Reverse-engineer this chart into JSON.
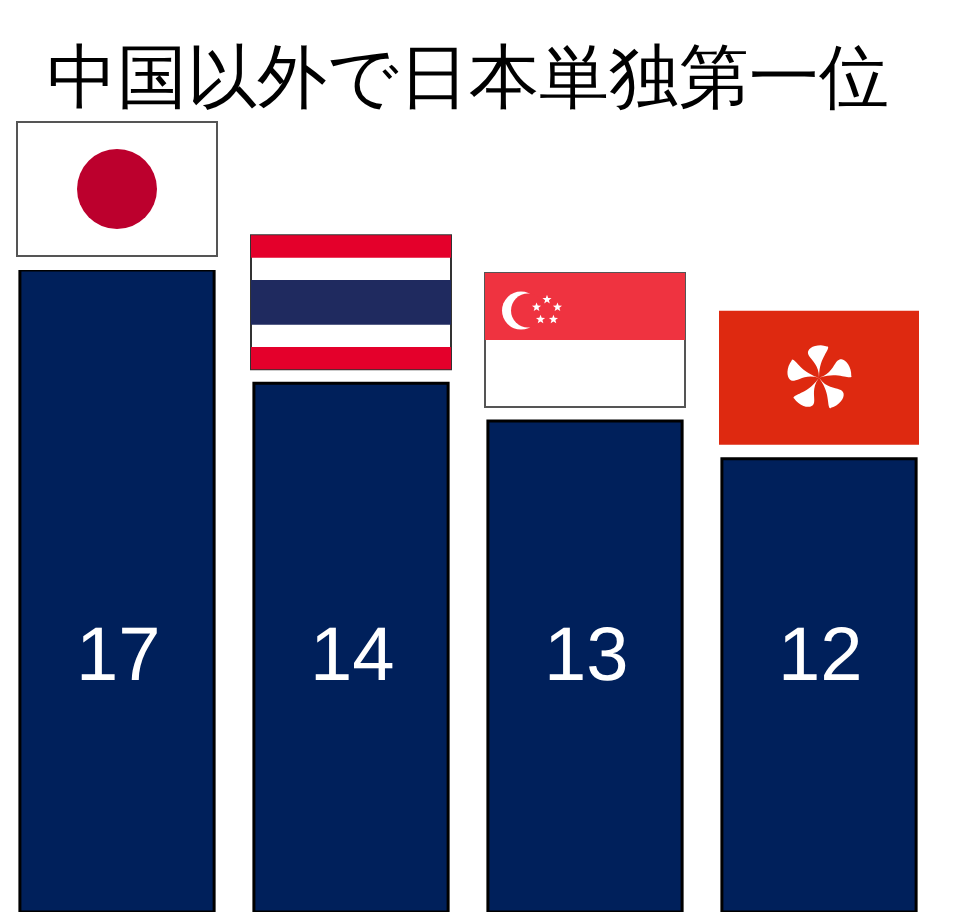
{
  "chart_data": {
    "type": "bar",
    "title": "中国以外で日本単独第一位",
    "categories": [
      null,
      null,
      null,
      null
    ],
    "values": [
      17,
      14,
      13,
      12
    ],
    "color": "#00205b",
    "data_labels": true
  }
}
